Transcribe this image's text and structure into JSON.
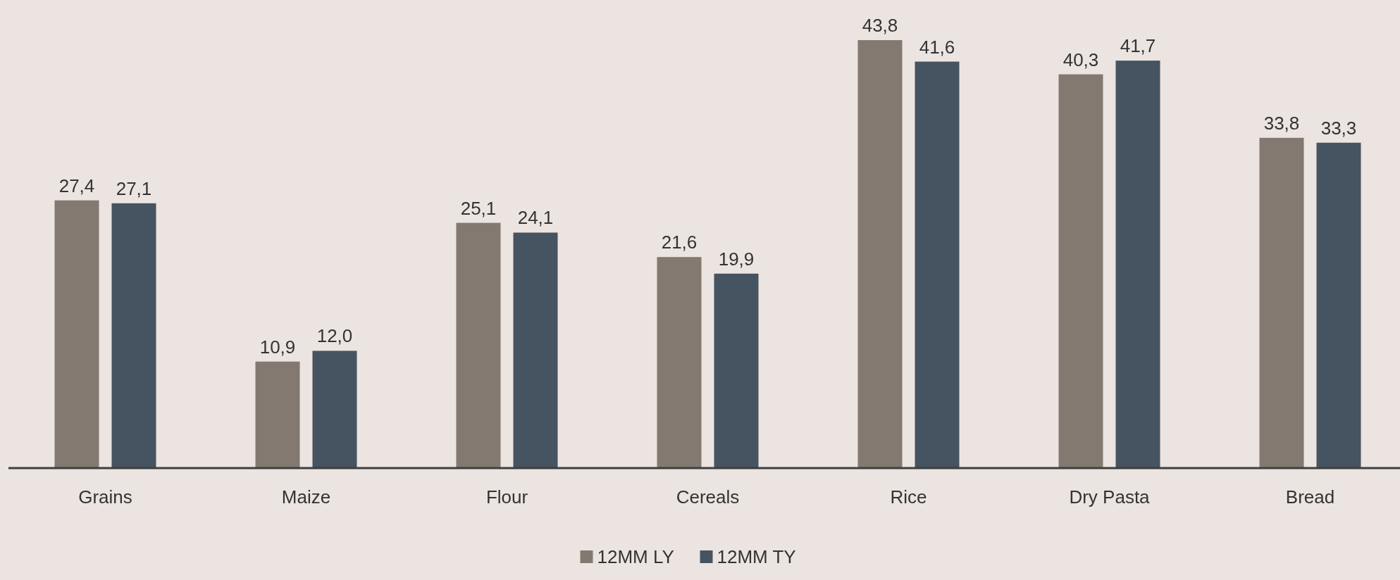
{
  "chart_data": {
    "type": "bar",
    "categories": [
      "Grains",
      "Maize",
      "Flour",
      "Cereals",
      "Rice",
      "Dry Pasta",
      "Bread"
    ],
    "series": [
      {
        "name": "12MM LY",
        "color": "#847970",
        "values": [
          27.4,
          10.9,
          25.1,
          21.6,
          43.8,
          40.3,
          33.8
        ],
        "value_labels": [
          "27,4",
          "10,9",
          "25,1",
          "21,6",
          "43,8",
          "40,3",
          "33,8"
        ]
      },
      {
        "name": "12MM TY",
        "color": "#465360",
        "values": [
          27.1,
          12.0,
          24.1,
          19.9,
          41.6,
          41.7,
          33.3
        ],
        "value_labels": [
          "27,1",
          "12,0",
          "24,1",
          "19,9",
          "41,6",
          "41,7",
          "33,3"
        ]
      }
    ],
    "legend": "bottom"
  }
}
